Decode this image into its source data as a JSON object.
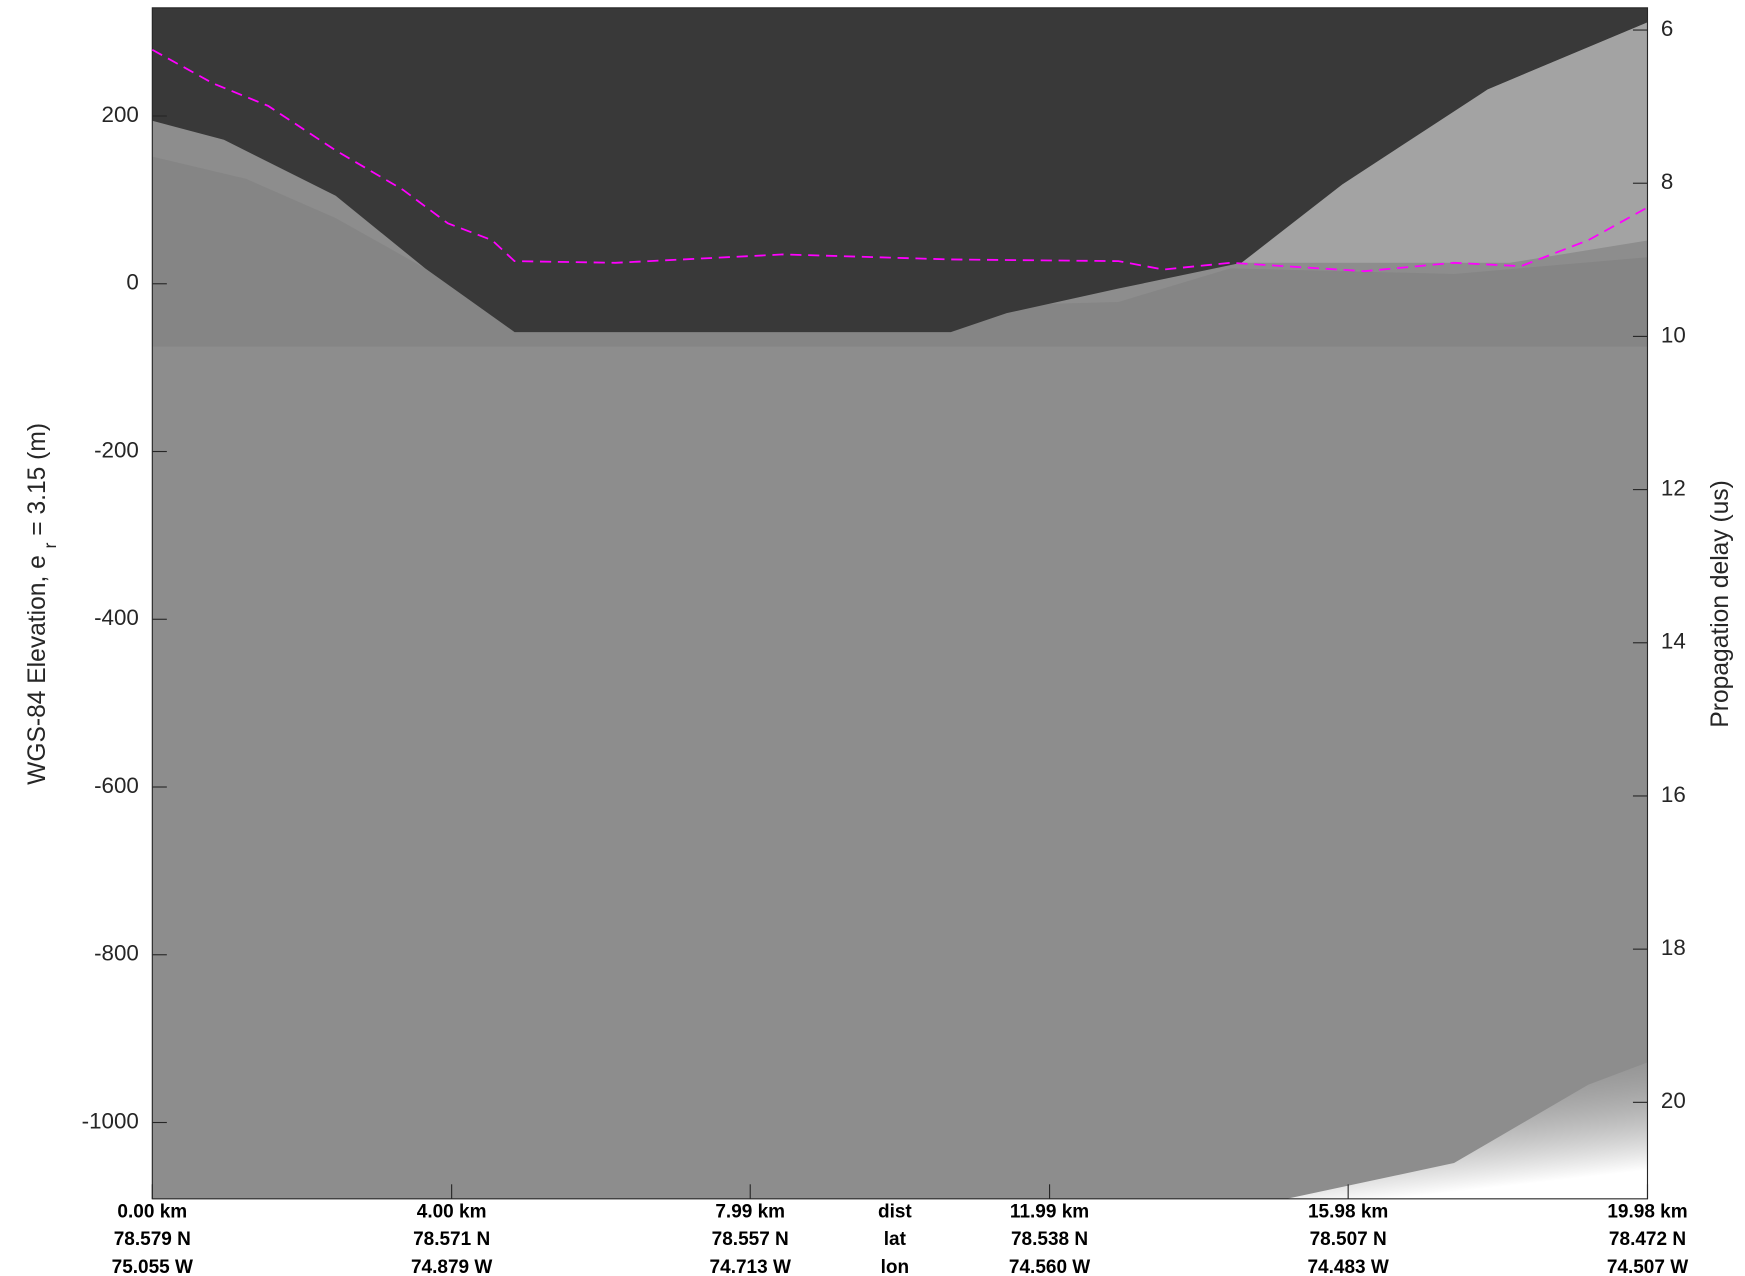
{
  "chart_data": {
    "type": "line",
    "ylabel_parts": [
      "WGS-84 Elevation, e",
      "r",
      " = 3.15 (m)"
    ],
    "y2label": "Propagation delay (us)",
    "xlim": [
      0,
      19.98
    ],
    "xticks": [
      {
        "value": 0,
        "label": "0.00 km"
      },
      {
        "value": 4.0,
        "label": "4.00 km"
      },
      {
        "value": 7.99,
        "label": "7.99 km"
      },
      {
        "value": 11.99,
        "label": "11.99 km"
      },
      {
        "value": 15.98,
        "label": "15.98 km"
      },
      {
        "value": 19.98,
        "label": "19.98 km"
      }
    ],
    "lat_labels": [
      "78.579 N",
      "78.571 N",
      "78.557 N",
      "78.538 N",
      "78.507 N",
      "78.472 N"
    ],
    "lon_labels": [
      "75.055 W",
      "74.879 W",
      "74.713 W",
      "74.560 W",
      "74.483 W",
      "74.507 W"
    ],
    "row_labels": [
      "dist",
      "lat",
      "lon"
    ],
    "ylim": [
      -1091,
      329
    ],
    "yticks": [
      200,
      0,
      -200,
      -400,
      -600,
      -800,
      -1000
    ],
    "y2lim": [
      21.26,
      5.71
    ],
    "y2ticks": [
      6,
      8,
      10,
      12,
      14,
      16,
      18,
      20
    ],
    "series": [
      {
        "color": "#ff00ff",
        "x": [
          0,
          0.81,
          1.55,
          2.45,
          3.35,
          3.95,
          4.54,
          4.84,
          6.19,
          8.43,
          10.67,
          12.91,
          13.51,
          14.41,
          16.2,
          17.39,
          18.29,
          19.19,
          19.98
        ],
        "values": [
          279,
          239,
          212,
          159,
          112,
          72,
          52,
          27,
          25,
          35,
          29,
          27,
          17,
          25,
          15,
          25,
          21,
          52,
          91
        ]
      }
    ]
  }
}
